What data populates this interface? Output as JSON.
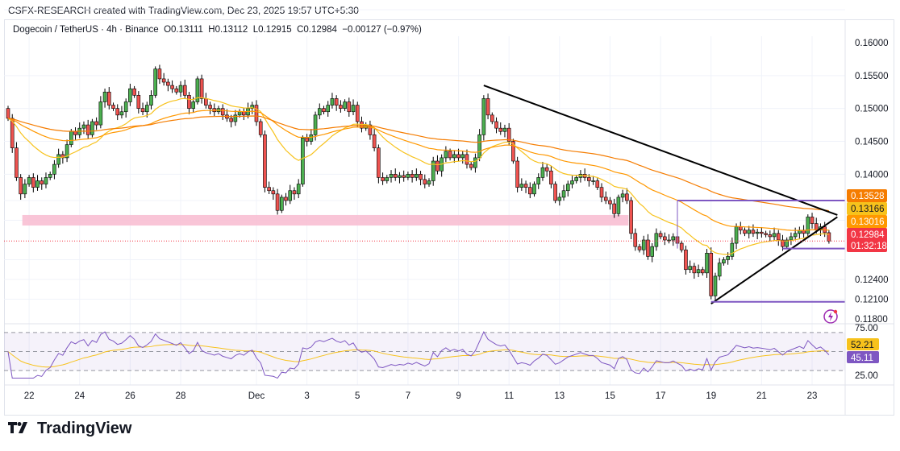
{
  "credit": "CSFX-RESEARCH created with TradingView.com, Dec 23, 2025 19:57 UTC+5:30",
  "legend": {
    "symbol": "Dogecoin / TetherUS · 4h · Binance",
    "open": "O0.13111",
    "high": "H0.13112",
    "low": "L0.12915",
    "close": "C0.12984",
    "change": "−0.00127 (−0.97%)"
  },
  "brand": "TradingView",
  "colors": {
    "up": "#26a69a",
    "down": "#ef5350",
    "candle_up": "#4caf50",
    "ema_fast": "#f7c21c",
    "ema_mid": "#ff9800",
    "ema_slow": "#f57c00",
    "rsi": "#7e57c2",
    "trend": "#000000",
    "level": "#7e57c2",
    "zone": "#f8bbd0"
  },
  "chart_data": {
    "type": "candlestick",
    "title": "Dogecoin / TetherUS · 4h · Binance",
    "timeframe": "4h",
    "closes": [
      0.1485,
      0.144,
      0.1395,
      0.137,
      0.1385,
      0.1395,
      0.138,
      0.139,
      0.1385,
      0.1395,
      0.14,
      0.1415,
      0.143,
      0.1425,
      0.1445,
      0.1465,
      0.146,
      0.147,
      0.1475,
      0.146,
      0.148,
      0.1475,
      0.151,
      0.1525,
      0.1505,
      0.15,
      0.149,
      0.1495,
      0.151,
      0.153,
      0.152,
      0.15,
      0.1495,
      0.1505,
      0.152,
      0.156,
      0.1545,
      0.154,
      0.1535,
      0.153,
      0.1525,
      0.1535,
      0.152,
      0.15,
      0.151,
      0.1545,
      0.1515,
      0.1505,
      0.15,
      0.1495,
      0.15,
      0.149,
      0.1485,
      0.148,
      0.149,
      0.1495,
      0.149,
      0.15,
      0.1505,
      0.148,
      0.146,
      0.138,
      0.1375,
      0.137,
      0.1345,
      0.1365,
      0.136,
      0.1375,
      0.137,
      0.1385,
      0.1455,
      0.145,
      0.146,
      0.149,
      0.15,
      0.1495,
      0.1505,
      0.1515,
      0.1505,
      0.15,
      0.151,
      0.1495,
      0.1505,
      0.148,
      0.147,
      0.1475,
      0.146,
      0.144,
      0.1395,
      0.139,
      0.1395,
      0.14,
      0.1395,
      0.1398,
      0.1395,
      0.14,
      0.1395,
      0.14,
      0.1392,
      0.1385,
      0.139,
      0.142,
      0.1405,
      0.1425,
      0.1435,
      0.1425,
      0.143,
      0.1425,
      0.143,
      0.1415,
      0.141,
      0.1425,
      0.146,
      0.1515,
      0.149,
      0.148,
      0.147,
      0.1465,
      0.147,
      0.145,
      0.142,
      0.138,
      0.1385,
      0.138,
      0.137,
      0.1385,
      0.1395,
      0.141,
      0.1405,
      0.1385,
      0.136,
      0.1365,
      0.1375,
      0.1385,
      0.139,
      0.1395,
      0.14,
      0.1395,
      0.139,
      0.139,
      0.138,
      0.1365,
      0.136,
      0.1355,
      0.134,
      0.1365,
      0.137,
      0.136,
      0.131,
      0.129,
      0.1285,
      0.13,
      0.1275,
      0.129,
      0.131,
      0.1305,
      0.13,
      0.13,
      0.1305,
      0.1295,
      0.1285,
      0.1255,
      0.126,
      0.125,
      0.1255,
      0.125,
      0.128,
      0.1215,
      0.1245,
      0.1265,
      0.127,
      0.1275,
      0.1295,
      0.132,
      0.1315,
      0.131,
      0.1315,
      0.131,
      0.1312,
      0.131,
      0.1308,
      0.1305,
      0.131,
      0.13,
      0.129,
      0.13,
      0.1305,
      0.131,
      0.1315,
      0.131,
      0.1335,
      0.1325,
      0.1315,
      0.132,
      0.13111,
      0.12984
    ],
    "first_open": 0.15,
    "x_tick_labels": [
      "22",
      "24",
      "26",
      "28",
      "Dec",
      "3",
      "5",
      "7",
      "9",
      "11",
      "13",
      "15",
      "17",
      "19",
      "21",
      "23"
    ],
    "x_tick_index": [
      5,
      17,
      29,
      41,
      59,
      71,
      83,
      95,
      107,
      119,
      131,
      143,
      155,
      167,
      179,
      191
    ],
    "y_tick_labels": [
      "0.16000",
      "0.15500",
      "0.15000",
      "0.14500",
      "0.14000",
      "0.12400",
      "0.12100",
      "0.11800"
    ],
    "ylim": [
      0.118,
      0.16
    ],
    "price_badges": [
      {
        "label": "0.13528",
        "price": 0.13528,
        "color": "#f57c00"
      },
      {
        "label": "0.13166",
        "price": 0.13166,
        "color": "#f7c21c"
      },
      {
        "label": "0.13016",
        "price": 0.13016,
        "color": "#ff9800"
      },
      {
        "label": "0.12984",
        "price": 0.12984,
        "color": "#f23645",
        "countdown": "01:32:18"
      }
    ],
    "drawings": {
      "trendlines": [
        {
          "from": [
            113,
            0.1535
          ],
          "to": [
            197,
            0.1338
          ]
        },
        {
          "from": [
            167,
            0.1203
          ],
          "to": [
            197,
            0.1335
          ]
        }
      ],
      "levels": [
        {
          "price": 0.136,
          "from": 159
        },
        {
          "price": 0.1287,
          "from": 184
        },
        {
          "price": 0.1206,
          "from": 167
        }
      ],
      "zone": {
        "top": 0.1338,
        "bottom": 0.1322,
        "from": 3,
        "to": 147
      }
    },
    "rsi": {
      "y_tick_labels": [
        "75.00",
        "25.00"
      ],
      "badges": [
        {
          "label": "52.21",
          "color": "#f7c21c"
        },
        {
          "label": "45.11",
          "color": "#7e57c2"
        }
      ],
      "bands": [
        70,
        50,
        30
      ]
    }
  }
}
